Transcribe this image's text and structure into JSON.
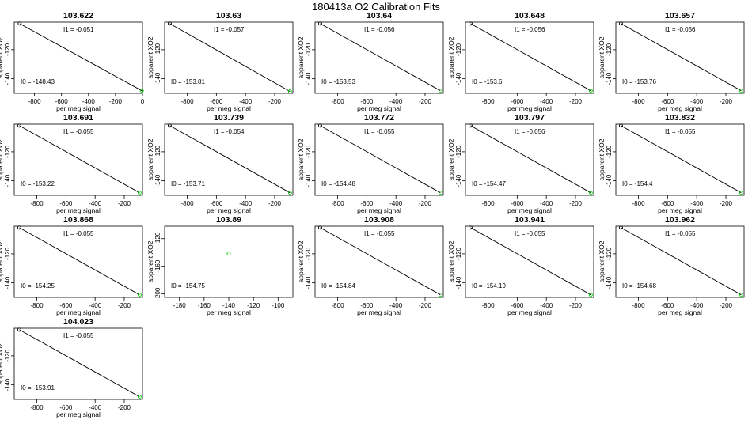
{
  "page": {
    "title": "180413a   O2 Calibration Fits"
  },
  "chart_data": [
    {
      "type": "scatter",
      "title": "103.622",
      "xlabel": "per meg signal",
      "ylabel": "apparent XO2",
      "xlim": [
        -950,
        0
      ],
      "ylim": [
        -150,
        -101
      ],
      "xticks": [
        -800,
        -600,
        -400,
        -200,
        0
      ],
      "yticks": [
        -140,
        -120
      ],
      "x": [
        -910,
        -5
      ],
      "y": [
        -102,
        -148.2
      ],
      "fit": {
        "I0": -148.43,
        "I1": -0.051
      },
      "annotations": {
        "i1": "I1 =  -0.051",
        "i0": "I0 =  -148.43"
      }
    },
    {
      "type": "scatter",
      "title": "103.63",
      "xlabel": "per meg signal",
      "ylabel": "apparent XO2",
      "xlim": [
        -955,
        -75
      ],
      "ylim": [
        -150,
        -101
      ],
      "xticks": [
        -800,
        -600,
        -400,
        -200
      ],
      "yticks": [
        -140,
        -120
      ],
      "x": [
        -920,
        -95
      ],
      "y": [
        -102,
        -148.7
      ],
      "fit": {
        "I0": -153.81,
        "I1": -0.057
      },
      "annotations": {
        "i1": "I1 =  -0.057",
        "i0": "I0 =  -153.81"
      }
    },
    {
      "type": "scatter",
      "title": "103.64",
      "xlabel": "per meg signal",
      "ylabel": "apparent XO2",
      "xlim": [
        -955,
        -75
      ],
      "ylim": [
        -150,
        -101
      ],
      "xticks": [
        -800,
        -600,
        -400,
        -200
      ],
      "yticks": [
        -140,
        -120
      ],
      "x": [
        -920,
        -95
      ],
      "y": [
        -102,
        -148.2
      ],
      "fit": {
        "I0": -153.53,
        "I1": -0.056
      },
      "annotations": {
        "i1": "I1 =  -0.056",
        "i0": "I0 =  -153.53"
      }
    },
    {
      "type": "scatter",
      "title": "103.648",
      "xlabel": "per meg signal",
      "ylabel": "apparent XO2",
      "xlim": [
        -955,
        -75
      ],
      "ylim": [
        -150,
        -101
      ],
      "xticks": [
        -800,
        -600,
        -400,
        -200
      ],
      "yticks": [
        -140,
        -120
      ],
      "x": [
        -920,
        -95
      ],
      "y": [
        -102,
        -148.2
      ],
      "fit": {
        "I0": -153.6,
        "I1": -0.056
      },
      "annotations": {
        "i1": "I1 =  -0.056",
        "i0": "I0 =  -153.6"
      }
    },
    {
      "type": "scatter",
      "title": "103.657",
      "xlabel": "per meg signal",
      "ylabel": "apparent XO2",
      "xlim": [
        -955,
        -75
      ],
      "ylim": [
        -150,
        -101
      ],
      "xticks": [
        -800,
        -600,
        -400,
        -200
      ],
      "yticks": [
        -140,
        -120
      ],
      "x": [
        -920,
        -95
      ],
      "y": [
        -102,
        -148.2
      ],
      "fit": {
        "I0": -153.76,
        "I1": -0.056
      },
      "annotations": {
        "i1": "I1 =  -0.056",
        "i0": "I0 =  -153.76"
      }
    },
    {
      "type": "scatter",
      "title": "103.691",
      "xlabel": "per meg signal",
      "ylabel": "apparent XO2",
      "xlim": [
        -955,
        -75
      ],
      "ylim": [
        -150,
        -101
      ],
      "xticks": [
        -800,
        -600,
        -400,
        -200
      ],
      "yticks": [
        -140,
        -120
      ],
      "x": [
        -920,
        -95
      ],
      "y": [
        -102,
        -148.2
      ],
      "fit": {
        "I0": -153.22,
        "I1": -0.055
      },
      "annotations": {
        "i1": "I1 =  -0.055",
        "i0": "I0 =  -153.22"
      }
    },
    {
      "type": "scatter",
      "title": "103.739",
      "xlabel": "per meg signal",
      "ylabel": "apparent XO2",
      "xlim": [
        -955,
        -75
      ],
      "ylim": [
        -150,
        -101
      ],
      "xticks": [
        -800,
        -600,
        -400,
        -200
      ],
      "yticks": [
        -140,
        -120
      ],
      "x": [
        -920,
        -95
      ],
      "y": [
        -102,
        -148.2
      ],
      "fit": {
        "I0": -153.71,
        "I1": -0.054
      },
      "annotations": {
        "i1": "I1 =  -0.054",
        "i0": "I0 =  -153.71"
      }
    },
    {
      "type": "scatter",
      "title": "103.772",
      "xlabel": "per meg signal",
      "ylabel": "apparent XO2",
      "xlim": [
        -955,
        -75
      ],
      "ylim": [
        -150,
        -101
      ],
      "xticks": [
        -800,
        -600,
        -400,
        -200
      ],
      "yticks": [
        -140,
        -120
      ],
      "x": [
        -920,
        -95
      ],
      "y": [
        -102,
        -148.2
      ],
      "fit": {
        "I0": -154.48,
        "I1": -0.055
      },
      "annotations": {
        "i1": "I1 =  -0.055",
        "i0": "I0 =  -154.48"
      }
    },
    {
      "type": "scatter",
      "title": "103.797",
      "xlabel": "per meg signal",
      "ylabel": "apparent XO2",
      "xlim": [
        -955,
        -75
      ],
      "ylim": [
        -150,
        -101
      ],
      "xticks": [
        -800,
        -600,
        -400,
        -200
      ],
      "yticks": [
        -140,
        -120
      ],
      "x": [
        -920,
        -95
      ],
      "y": [
        -102,
        -148.2
      ],
      "fit": {
        "I0": -154.47,
        "I1": -0.056
      },
      "annotations": {
        "i1": "I1 =  -0.056",
        "i0": "I0 =  -154.47"
      }
    },
    {
      "type": "scatter",
      "title": "103.832",
      "xlabel": "per meg signal",
      "ylabel": "apparent XO2",
      "xlim": [
        -955,
        -75
      ],
      "ylim": [
        -150,
        -101
      ],
      "xticks": [
        -800,
        -600,
        -400,
        -200
      ],
      "yticks": [
        -140,
        -120
      ],
      "x": [
        -920,
        -95
      ],
      "y": [
        -102,
        -148.2
      ],
      "fit": {
        "I0": -154.4,
        "I1": -0.055
      },
      "annotations": {
        "i1": "I1 =  -0.055",
        "i0": "I0 =  -154.4"
      }
    },
    {
      "type": "scatter",
      "title": "103.868",
      "xlabel": "per meg signal",
      "ylabel": "apparent XO2",
      "xlim": [
        -955,
        -75
      ],
      "ylim": [
        -150,
        -101
      ],
      "xticks": [
        -800,
        -600,
        -400,
        -200
      ],
      "yticks": [
        -140,
        -120
      ],
      "x": [
        -920,
        -95
      ],
      "y": [
        -102,
        -148.2
      ],
      "fit": {
        "I0": -154.25,
        "I1": -0.055
      },
      "annotations": {
        "i1": "I1 =  -0.055",
        "i0": "I0 =  -154.25"
      }
    },
    {
      "type": "scatter",
      "title": "103.89",
      "xlabel": "per meg signal",
      "ylabel": "apparent XO2",
      "xlim": [
        -192,
        -88
      ],
      "ylim": [
        -205,
        -102
      ],
      "xticks": [
        -180,
        -160,
        -140,
        -120,
        -100
      ],
      "yticks": [
        -200,
        -160,
        -120
      ],
      "x": [
        -140
      ],
      "y": [
        -141.7
      ],
      "fit": {
        "I0": -154.75,
        "I1": null
      },
      "annotations": {
        "i1": "",
        "i0": "I0 =  -154.75"
      }
    },
    {
      "type": "scatter",
      "title": "103.908",
      "xlabel": "per meg signal",
      "ylabel": "apparent XO2",
      "xlim": [
        -955,
        -75
      ],
      "ylim": [
        -150,
        -101
      ],
      "xticks": [
        -800,
        -600,
        -400,
        -200
      ],
      "yticks": [
        -140,
        -120
      ],
      "x": [
        -920,
        -95
      ],
      "y": [
        -102,
        -148.2
      ],
      "fit": {
        "I0": -154.84,
        "I1": -0.055
      },
      "annotations": {
        "i1": "I1 =  -0.055",
        "i0": "I0 =  -154.84"
      }
    },
    {
      "type": "scatter",
      "title": "103.941",
      "xlabel": "per meg signal",
      "ylabel": "apparent XO2",
      "xlim": [
        -955,
        -75
      ],
      "ylim": [
        -150,
        -101
      ],
      "xticks": [
        -800,
        -600,
        -400,
        -200
      ],
      "yticks": [
        -140,
        -120
      ],
      "x": [
        -920,
        -95
      ],
      "y": [
        -102,
        -148.2
      ],
      "fit": {
        "I0": -154.19,
        "I1": -0.055
      },
      "annotations": {
        "i1": "I1 =  -0.055",
        "i0": "I0 =  -154.19"
      }
    },
    {
      "type": "scatter",
      "title": "103.962",
      "xlabel": "per meg signal",
      "ylabel": "apparent XO2",
      "xlim": [
        -955,
        -75
      ],
      "ylim": [
        -150,
        -101
      ],
      "xticks": [
        -800,
        -600,
        -400,
        -200
      ],
      "yticks": [
        -140,
        -120
      ],
      "x": [
        -920,
        -95
      ],
      "y": [
        -102,
        -148.2
      ],
      "fit": {
        "I0": -154.68,
        "I1": -0.055
      },
      "annotations": {
        "i1": "I1 =  -0.055",
        "i0": "I0 =  -154.68"
      }
    },
    {
      "type": "scatter",
      "title": "104.023",
      "xlabel": "per meg signal",
      "ylabel": "apparent XO2",
      "xlim": [
        -955,
        -75
      ],
      "ylim": [
        -150,
        -101
      ],
      "xticks": [
        -800,
        -600,
        -400,
        -200
      ],
      "yticks": [
        -140,
        -120
      ],
      "x": [
        -920,
        -95
      ],
      "y": [
        -102,
        -148.2
      ],
      "fit": {
        "I0": -153.91,
        "I1": -0.055
      },
      "annotations": {
        "i1": "I1 =  -0.055",
        "i0": "I0 =  -153.91"
      }
    }
  ],
  "colors": {
    "point_start": "#000000",
    "point_end": "#00cc00",
    "line": "#000000"
  }
}
